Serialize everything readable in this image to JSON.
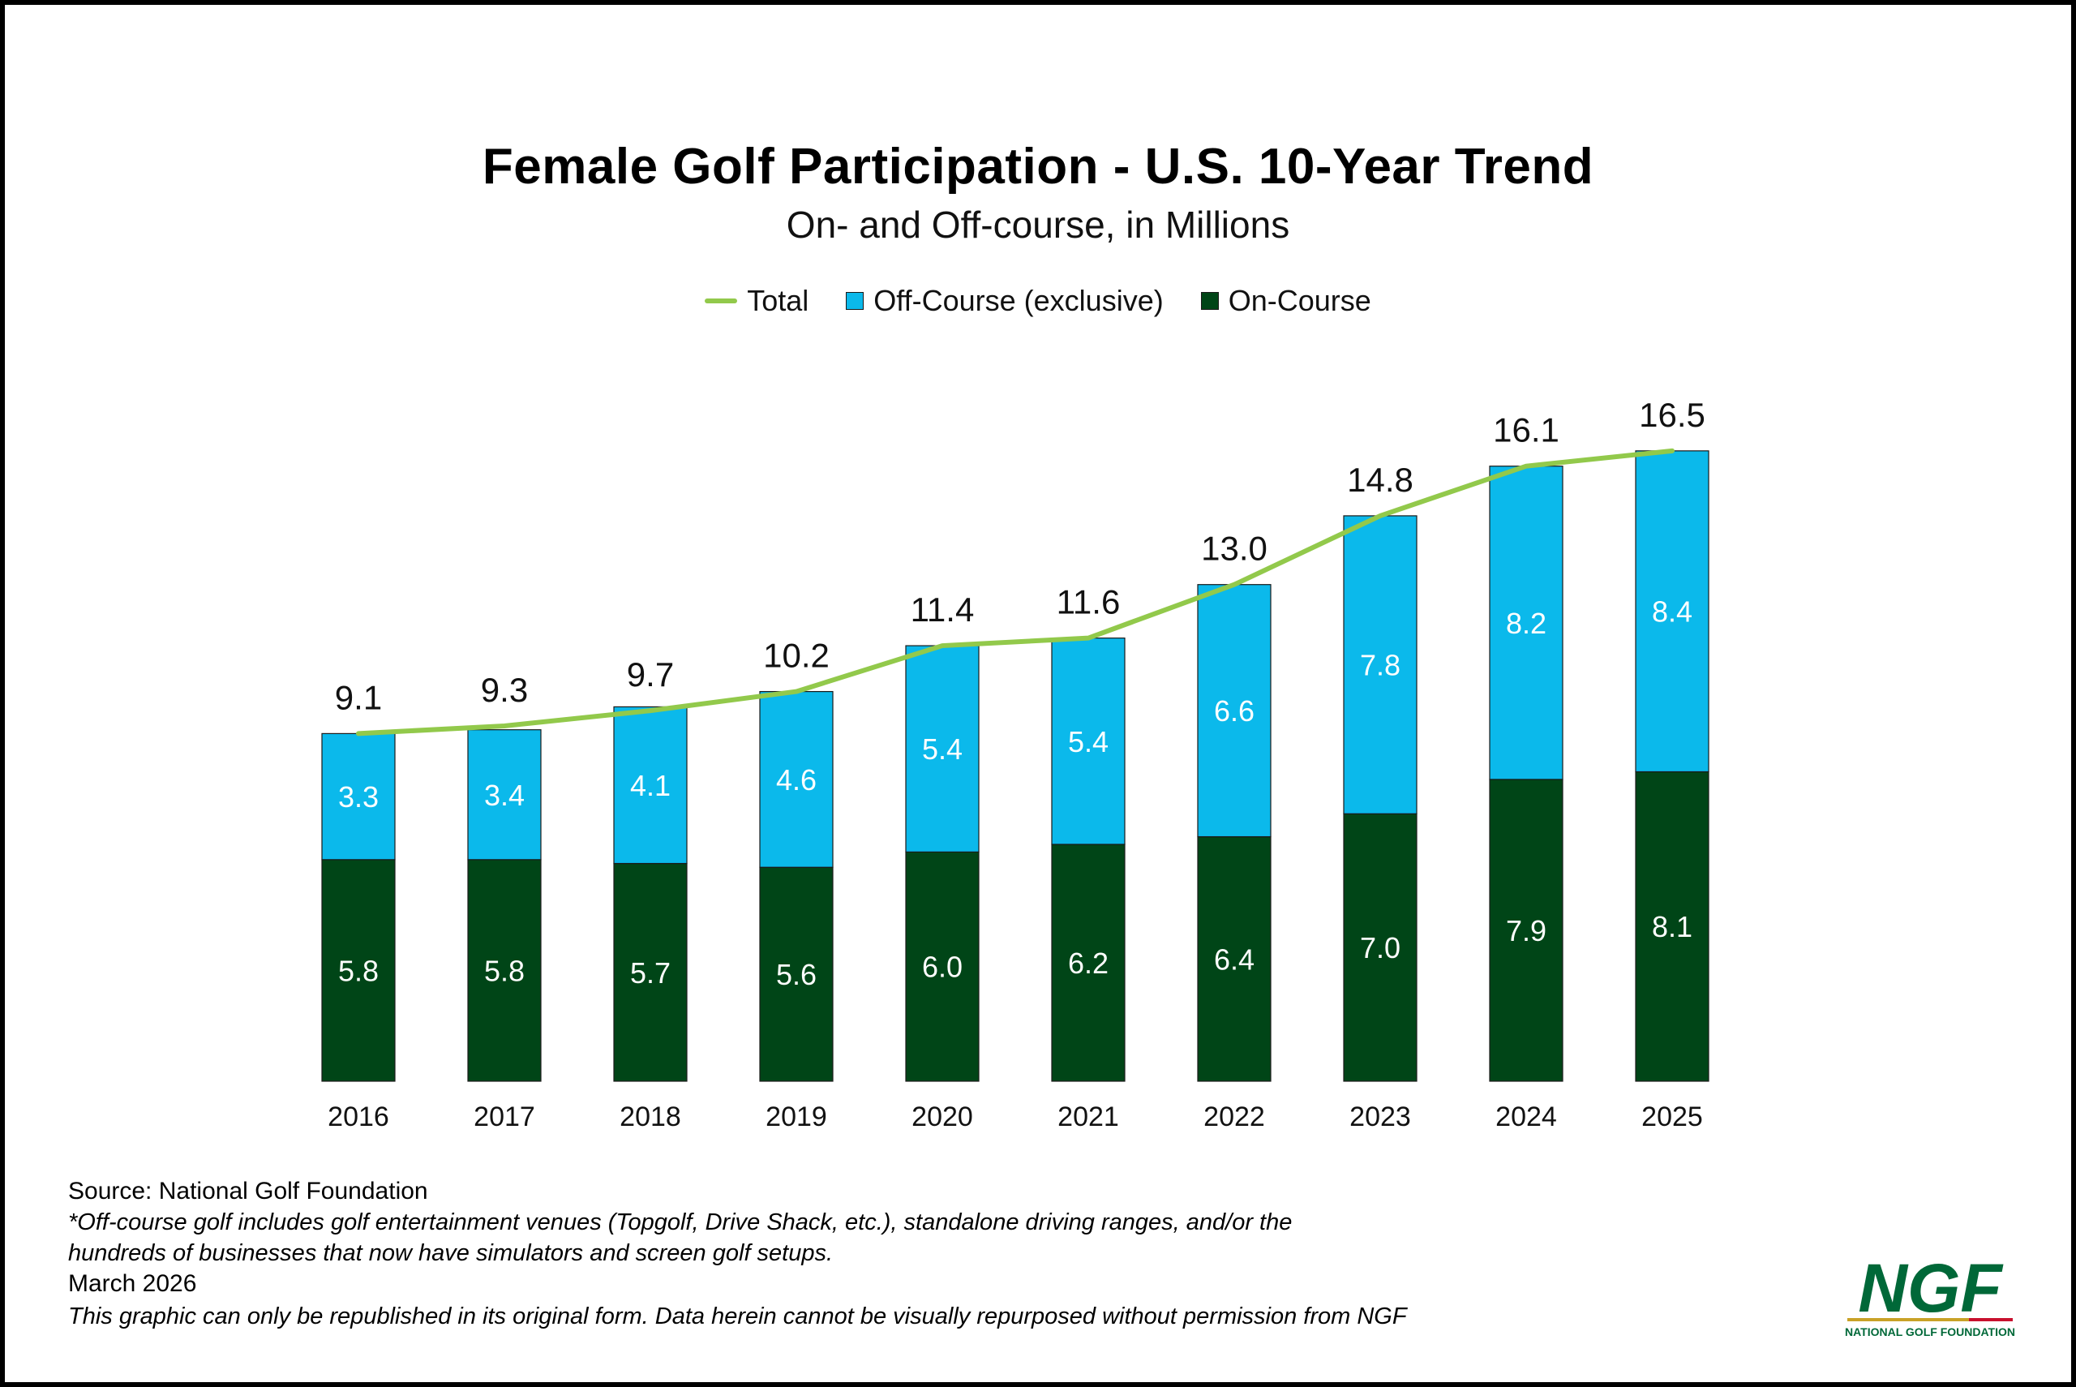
{
  "colors": {
    "on_course": "#004517",
    "off_course": "#0BB9EB",
    "total_line": "#92C94B",
    "logo_green": "#006838",
    "logo_gold": "#C9A227",
    "logo_red": "#C8102E"
  },
  "legend": {
    "total": "Total",
    "off_course": "Off-Course (exclusive)",
    "on_course": "On-Course"
  },
  "footer": {
    "source": "Source: National Golf Foundation",
    "note_line1": "*Off-course golf includes golf entertainment venues (Topgolf, Drive Shack, etc.), standalone driving ranges, and/or the",
    "note_line2": "hundreds of businesses that now have simulators and screen golf setups.",
    "date": "March 2026",
    "rights": "This graphic can only be republished in its original form. Data herein cannot be visually repurposed without permission from NGF"
  },
  "logo": {
    "mark": "NGF",
    "tagline": "NATIONAL GOLF FOUNDATION"
  },
  "chart_data": {
    "type": "bar",
    "stacked": true,
    "title": "Female Golf Participation - U.S. 10-Year Trend",
    "subtitle": "On- and Off-course, in Millions",
    "xlabel": "",
    "ylabel": "",
    "grid": false,
    "legend_position": "top-center",
    "ylim": [
      0,
      18
    ],
    "categories": [
      "2016",
      "2017",
      "2018",
      "2019",
      "2020",
      "2021",
      "2022",
      "2023",
      "2024",
      "2025"
    ],
    "series": [
      {
        "name": "On-Course",
        "values": [
          5.8,
          5.8,
          5.7,
          5.6,
          6.0,
          6.2,
          6.4,
          7.0,
          7.9,
          8.1
        ]
      },
      {
        "name": "Off-Course (exclusive)",
        "values": [
          3.3,
          3.4,
          4.1,
          4.6,
          5.4,
          5.4,
          6.6,
          7.8,
          8.2,
          8.4
        ]
      }
    ],
    "total": {
      "name": "Total",
      "values": [
        9.1,
        9.3,
        9.7,
        10.2,
        11.4,
        11.6,
        13.0,
        14.8,
        16.1,
        16.5
      ],
      "labels": [
        "9.1",
        "9.3",
        "9.7",
        "10.2",
        "11.4",
        "11.6",
        "13.0",
        "14.8",
        "16.1",
        "16.5"
      ]
    },
    "on_labels": [
      "5.8",
      "5.8",
      "5.7",
      "5.6",
      "6.0",
      "6.2",
      "6.4",
      "7.0",
      "7.9",
      "8.1"
    ],
    "off_labels": [
      "3.3",
      "3.4",
      "4.1",
      "4.6",
      "5.4",
      "5.4",
      "6.6",
      "7.8",
      "8.2",
      "8.4"
    ]
  }
}
